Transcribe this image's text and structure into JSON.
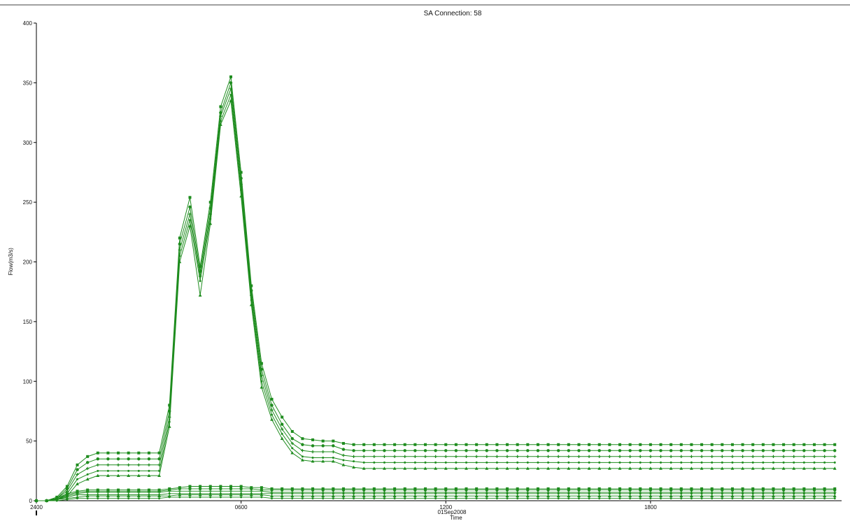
{
  "chart_data": {
    "type": "line",
    "title": "SA Connection: 58",
    "xlabel": "Time",
    "ylabel": "Flow(m3/s)",
    "date_label": "01Sep2008",
    "xlim": [
      0,
      23.6
    ],
    "ylim": [
      0,
      400
    ],
    "x_ticks": [
      {
        "value": 0,
        "label": "2400"
      },
      {
        "value": 6,
        "label": "0600"
      },
      {
        "value": 12,
        "label": "1200"
      },
      {
        "value": 18,
        "label": "1800"
      }
    ],
    "y_ticks": [
      0,
      50,
      100,
      150,
      200,
      250,
      300,
      350,
      400
    ],
    "grid": false,
    "legend": "none",
    "line_color": "#1e8c1e",
    "time_step_hours": 0.3,
    "series": [
      {
        "marker": "square",
        "values": [
          0,
          0,
          3,
          12,
          30,
          37,
          40,
          40,
          40,
          40,
          40,
          40,
          40,
          80,
          220,
          254,
          196,
          250,
          330,
          355,
          275,
          180,
          115,
          85,
          70,
          58,
          52,
          51,
          50,
          50,
          48,
          47,
          47
        ],
        "tail": 47
      },
      {
        "marker": "circle",
        "values": [
          0,
          0,
          2,
          10,
          26,
          32,
          35,
          35,
          35,
          35,
          35,
          35,
          35,
          75,
          215,
          246,
          192,
          245,
          325,
          350,
          270,
          176,
          110,
          80,
          64,
          52,
          47,
          46,
          46,
          46,
          43,
          42,
          42
        ],
        "tail": 42
      },
      {
        "marker": "plus",
        "values": [
          0,
          0,
          2,
          8,
          22,
          27,
          30,
          30,
          30,
          30,
          30,
          30,
          30,
          70,
          210,
          240,
          188,
          240,
          322,
          345,
          265,
          172,
          105,
          76,
          60,
          48,
          42,
          41,
          41,
          41,
          38,
          37,
          37
        ],
        "tail": 37
      },
      {
        "marker": "dot",
        "values": [
          0,
          0,
          1,
          6,
          18,
          22,
          25,
          25,
          25,
          25,
          25,
          25,
          25,
          66,
          205,
          235,
          184,
          236,
          318,
          340,
          260,
          168,
          100,
          72,
          56,
          44,
          37,
          36,
          36,
          36,
          34,
          33,
          32
        ],
        "tail": 32
      },
      {
        "marker": "triangle",
        "values": [
          0,
          0,
          1,
          4,
          14,
          18,
          21,
          21,
          21,
          21,
          21,
          21,
          21,
          62,
          200,
          230,
          172,
          232,
          315,
          335,
          255,
          164,
          95,
          68,
          52,
          40,
          34,
          33,
          33,
          33,
          30,
          28,
          27
        ],
        "tail": 27
      },
      {
        "marker": "square",
        "values": [
          0,
          0,
          2,
          6,
          8,
          9,
          9,
          9,
          9,
          9,
          9,
          9,
          9,
          10,
          11,
          12,
          12,
          12,
          12,
          12,
          12,
          11,
          11,
          10,
          10,
          10,
          10,
          10,
          10,
          10,
          10,
          10,
          10
        ],
        "tail": 10
      },
      {
        "marker": "circle",
        "values": [
          0,
          0,
          1,
          5,
          7,
          8,
          8,
          8,
          8,
          8,
          8,
          8,
          8,
          9,
          10,
          10,
          10,
          10,
          10,
          10,
          10,
          10,
          9,
          9,
          9,
          9,
          9,
          9,
          9,
          9,
          9,
          9,
          9
        ],
        "tail": 9
      },
      {
        "marker": "plus",
        "values": [
          0,
          0,
          1,
          4,
          6,
          7,
          7,
          7,
          7,
          7,
          7,
          7,
          7,
          8,
          8,
          8,
          8,
          8,
          8,
          8,
          8,
          8,
          8,
          7,
          7,
          7,
          7,
          7,
          7,
          7,
          7,
          7,
          7
        ],
        "tail": 7
      },
      {
        "marker": "dot",
        "values": [
          0,
          0,
          1,
          3,
          5,
          5,
          5,
          5,
          5,
          5,
          5,
          5,
          5,
          6,
          6,
          6,
          6,
          6,
          6,
          6,
          6,
          6,
          6,
          6,
          6,
          6,
          6,
          6,
          6,
          6,
          6,
          6,
          6
        ],
        "tail": 6
      },
      {
        "marker": "triangle",
        "values": [
          0,
          0,
          1,
          2,
          3,
          4,
          4,
          4,
          4,
          4,
          4,
          4,
          4,
          4,
          5,
          5,
          5,
          5,
          5,
          5,
          5,
          5,
          5,
          4,
          4,
          4,
          4,
          4,
          4,
          4,
          4,
          4,
          4
        ],
        "tail": 4
      },
      {
        "marker": "dot",
        "values": [
          0,
          0,
          0,
          1,
          2,
          2,
          2,
          2,
          2,
          2,
          2,
          2,
          2,
          3,
          3,
          3,
          3,
          3,
          3,
          3,
          3,
          3,
          3,
          2,
          2,
          2,
          2,
          2,
          2,
          2,
          2,
          2,
          2
        ],
        "tail": 2
      }
    ]
  }
}
